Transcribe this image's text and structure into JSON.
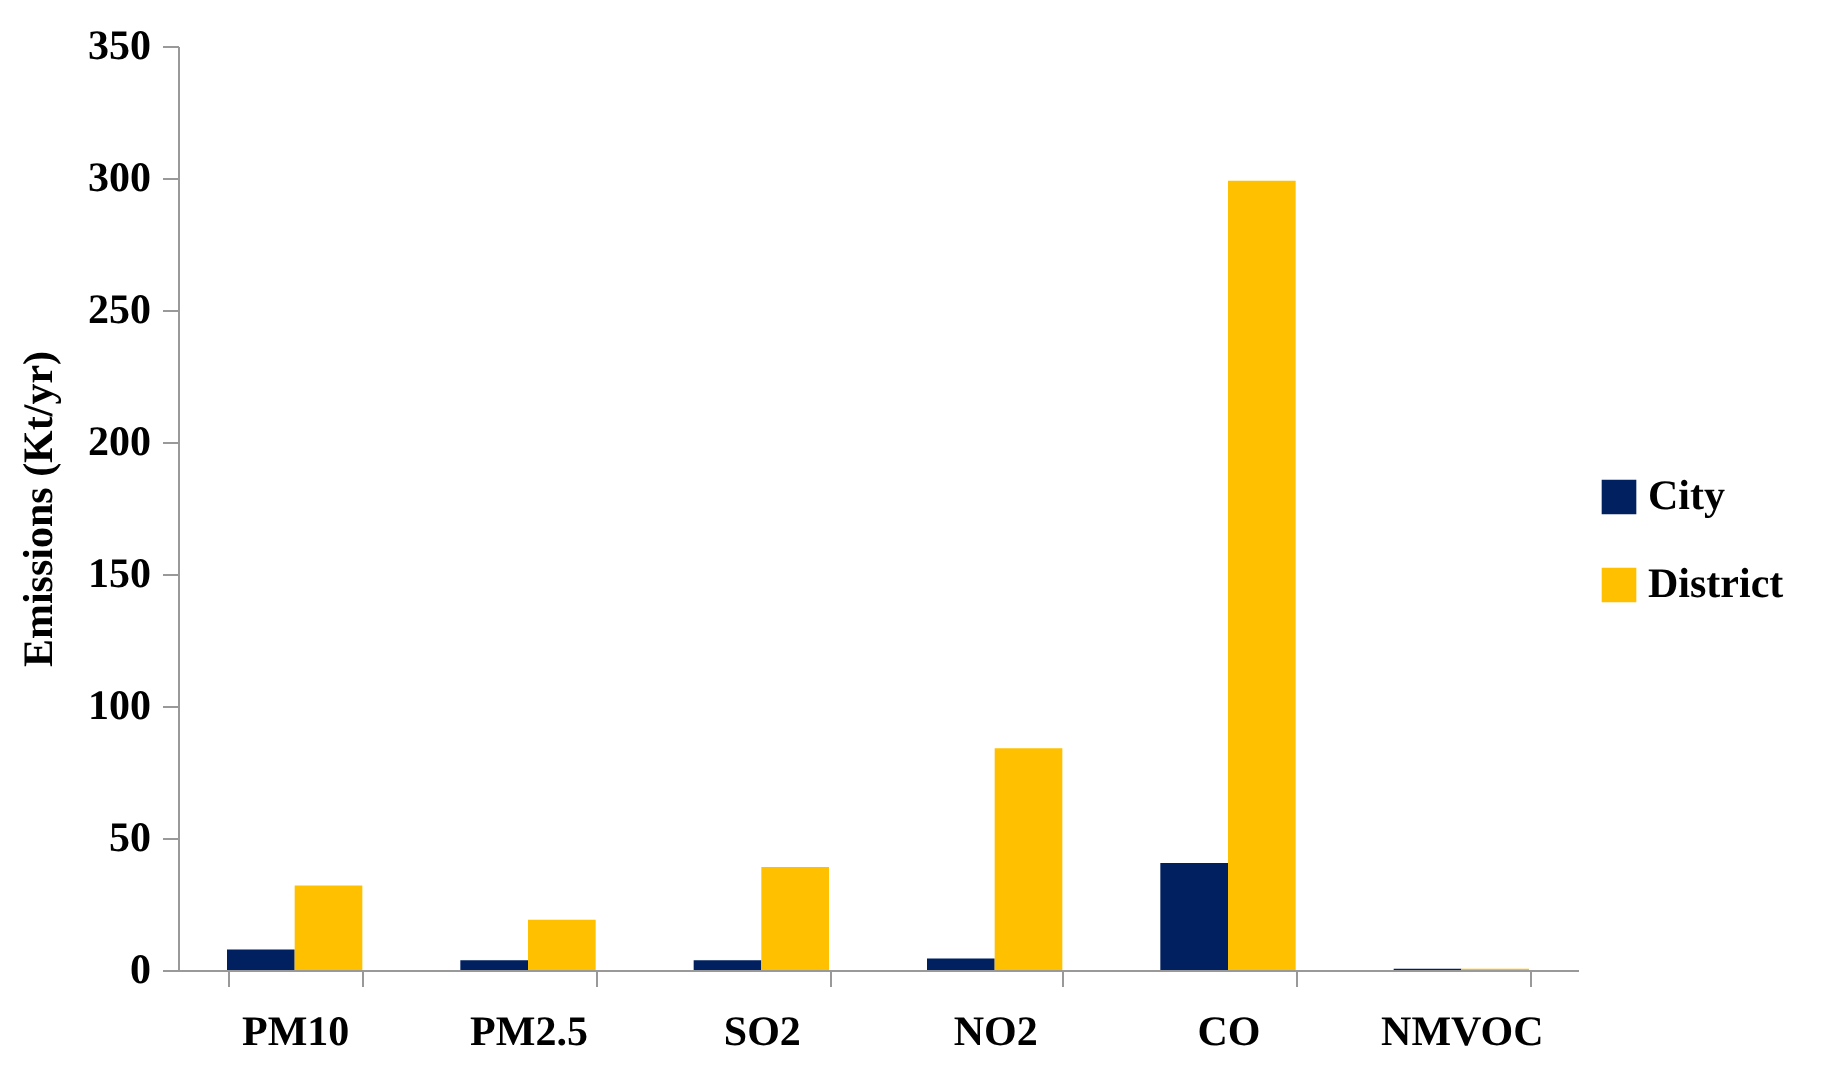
{
  "chart_data": {
    "type": "bar",
    "ylabel": "Emissions (Kt/yr)",
    "categories": [
      "PM10",
      "PM2.5",
      "SO2",
      "NO2",
      "CO",
      "NMVOC"
    ],
    "series": [
      {
        "name": "City",
        "color": "#002060",
        "values": [
          7.8,
          3.7,
          3.7,
          4.4,
          40.5,
          0.5
        ]
      },
      {
        "name": "District",
        "color": "#ffc000",
        "values": [
          32,
          19,
          39,
          84,
          299,
          0.5
        ]
      }
    ],
    "ylim": [
      0,
      350
    ],
    "yticks": [
      0,
      50,
      100,
      150,
      200,
      250,
      300,
      350
    ],
    "grid": false,
    "legend": "right"
  }
}
